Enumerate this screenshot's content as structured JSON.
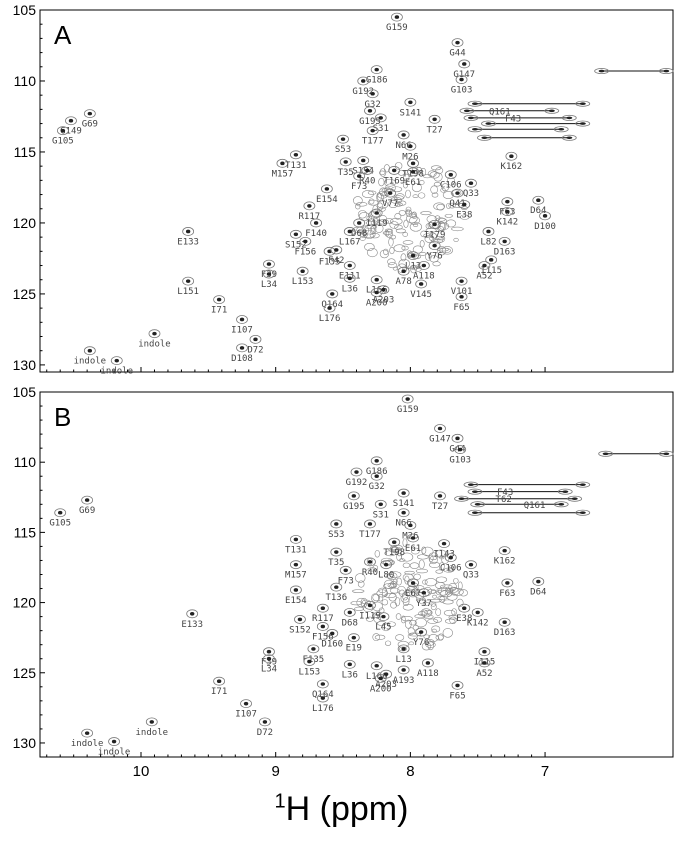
{
  "chart_data": [
    {
      "type": "scatter",
      "panel": "A",
      "xlim": [
        10.75,
        6.05
      ],
      "ylim": [
        105,
        130.5
      ],
      "x_ticks": [],
      "y_ticks": [
        105,
        110,
        115,
        120,
        125,
        130
      ],
      "peaks": [
        {
          "label": "G159",
          "x": 8.1,
          "y": 105.5
        },
        {
          "label": "G44",
          "x": 7.65,
          "y": 107.3
        },
        {
          "label": "G147",
          "x": 7.6,
          "y": 108.8
        },
        {
          "label": "G103",
          "x": 7.62,
          "y": 109.9
        },
        {
          "label": "G186",
          "x": 8.25,
          "y": 109.2
        },
        {
          "label": "G192",
          "x": 8.35,
          "y": 110.0
        },
        {
          "label": "G32",
          "x": 8.28,
          "y": 110.9
        },
        {
          "label": "S141",
          "x": 8.0,
          "y": 111.5
        },
        {
          "label": "G195",
          "x": 8.3,
          "y": 112.1
        },
        {
          "label": "S31",
          "x": 8.22,
          "y": 112.6
        },
        {
          "label": "T27",
          "x": 7.82,
          "y": 112.7
        },
        {
          "label": "T177",
          "x": 8.28,
          "y": 113.5
        },
        {
          "label": "N66",
          "x": 8.05,
          "y": 113.8
        },
        {
          "label": "S53",
          "x": 8.5,
          "y": 114.1
        },
        {
          "label": "M26",
          "x": 8.0,
          "y": 114.6
        },
        {
          "label": "T198",
          "x": 7.98,
          "y": 115.8
        },
        {
          "label": "S194",
          "x": 8.35,
          "y": 115.6
        },
        {
          "label": "T35",
          "x": 8.48,
          "y": 115.7
        },
        {
          "label": "T169",
          "x": 8.12,
          "y": 116.3
        },
        {
          "label": "R40",
          "x": 8.32,
          "y": 116.3
        },
        {
          "label": "E61",
          "x": 7.98,
          "y": 116.4
        },
        {
          "label": "C106",
          "x": 7.7,
          "y": 116.6
        },
        {
          "label": "Q33",
          "x": 7.55,
          "y": 117.2
        },
        {
          "label": "Q41",
          "x": 7.65,
          "y": 117.9
        },
        {
          "label": "K162",
          "x": 7.25,
          "y": 115.3
        },
        {
          "label": "F73",
          "x": 8.38,
          "y": 116.7
        },
        {
          "label": "V77",
          "x": 8.15,
          "y": 117.9
        },
        {
          "label": "M157",
          "x": 8.95,
          "y": 115.8
        },
        {
          "label": "T131",
          "x": 8.85,
          "y": 115.2
        },
        {
          "label": "E154",
          "x": 8.62,
          "y": 117.6
        },
        {
          "label": "E38",
          "x": 7.6,
          "y": 118.7
        },
        {
          "label": "F63",
          "x": 7.28,
          "y": 118.5
        },
        {
          "label": "D64",
          "x": 7.05,
          "y": 118.4
        },
        {
          "label": "K142",
          "x": 7.28,
          "y": 119.2
        },
        {
          "label": "D100",
          "x": 7.0,
          "y": 119.5
        },
        {
          "label": "R117",
          "x": 8.75,
          "y": 118.8
        },
        {
          "label": "I119",
          "x": 8.25,
          "y": 119.3
        },
        {
          "label": "D68",
          "x": 8.38,
          "y": 120.0
        },
        {
          "label": "F140",
          "x": 8.7,
          "y": 120.0
        },
        {
          "label": "I179",
          "x": 7.82,
          "y": 120.1
        },
        {
          "label": "L82",
          "x": 7.42,
          "y": 120.6
        },
        {
          "label": "S152",
          "x": 8.85,
          "y": 120.8
        },
        {
          "label": "F156",
          "x": 8.78,
          "y": 121.3
        },
        {
          "label": "L167",
          "x": 8.45,
          "y": 120.6
        },
        {
          "label": "D163",
          "x": 7.3,
          "y": 121.3
        },
        {
          "label": "Y76",
          "x": 7.82,
          "y": 121.6
        },
        {
          "label": "E133",
          "x": 9.65,
          "y": 120.6
        },
        {
          "label": "F135",
          "x": 8.6,
          "y": 122.0
        },
        {
          "label": "F42",
          "x": 8.55,
          "y": 121.9
        },
        {
          "label": "L13",
          "x": 7.98,
          "y": 122.3
        },
        {
          "label": "I115",
          "x": 7.4,
          "y": 122.6
        },
        {
          "label": "E111",
          "x": 8.45,
          "y": 123.0
        },
        {
          "label": "A118",
          "x": 7.9,
          "y": 123.0
        },
        {
          "label": "L153",
          "x": 8.8,
          "y": 123.4
        },
        {
          "label": "F39",
          "x": 9.05,
          "y": 122.9
        },
        {
          "label": "A78",
          "x": 8.05,
          "y": 123.4
        },
        {
          "label": "A52",
          "x": 7.45,
          "y": 123.0
        },
        {
          "label": "L34",
          "x": 9.05,
          "y": 123.6
        },
        {
          "label": "L36",
          "x": 8.45,
          "y": 123.9
        },
        {
          "label": "L166",
          "x": 8.25,
          "y": 124.0
        },
        {
          "label": "V145",
          "x": 7.92,
          "y": 124.3
        },
        {
          "label": "V101",
          "x": 7.62,
          "y": 124.1
        },
        {
          "label": "Q164",
          "x": 8.58,
          "y": 125.0
        },
        {
          "label": "F65",
          "x": 7.62,
          "y": 125.2
        },
        {
          "label": "A200",
          "x": 8.25,
          "y": 124.9
        },
        {
          "label": "A203",
          "x": 8.2,
          "y": 124.7
        },
        {
          "label": "L176",
          "x": 8.6,
          "y": 126.0
        },
        {
          "label": "L151",
          "x": 9.65,
          "y": 124.1
        },
        {
          "label": "I71",
          "x": 9.42,
          "y": 125.4
        },
        {
          "label": "I107",
          "x": 9.25,
          "y": 126.8
        },
        {
          "label": "D72",
          "x": 9.15,
          "y": 128.2
        },
        {
          "label": "D108",
          "x": 9.25,
          "y": 128.8
        },
        {
          "label": "G149",
          "x": 10.52,
          "y": 112.8
        },
        {
          "label": "G69",
          "x": 10.38,
          "y": 112.3
        },
        {
          "label": "G105",
          "x": 10.58,
          "y": 113.5
        },
        {
          "label": "indole",
          "x": 10.38,
          "y": 129.0
        },
        {
          "label": "indole",
          "x": 10.18,
          "y": 129.7
        },
        {
          "label": "indole",
          "x": 9.9,
          "y": 127.8
        }
      ],
      "connectors": [
        {
          "x1": 6.58,
          "x2": 6.1,
          "y": 109.3
        },
        {
          "x1": 7.52,
          "x2": 6.72,
          "y": 111.6
        },
        {
          "x1": 7.58,
          "x2": 6.95,
          "y": 112.1
        },
        {
          "x1": 7.55,
          "x2": 6.82,
          "y": 112.6
        },
        {
          "x1": 7.42,
          "x2": 6.72,
          "y": 113.0
        },
        {
          "x1": 7.52,
          "x2": 6.88,
          "y": 113.4
        },
        {
          "x1": 7.45,
          "x2": 6.82,
          "y": 114.0
        }
      ],
      "inline_tags": [
        "Q161",
        "F43"
      ]
    },
    {
      "type": "scatter",
      "panel": "B",
      "xlim": [
        10.75,
        6.05
      ],
      "ylim": [
        105,
        131
      ],
      "x_ticks": [
        10,
        9,
        8,
        7
      ],
      "y_ticks": [
        105,
        110,
        115,
        120,
        125,
        130
      ],
      "peaks": [
        {
          "label": "G159",
          "x": 8.02,
          "y": 105.5
        },
        {
          "label": "G147",
          "x": 7.78,
          "y": 107.6
        },
        {
          "label": "G44",
          "x": 7.65,
          "y": 108.3
        },
        {
          "label": "G103",
          "x": 7.63,
          "y": 109.1
        },
        {
          "label": "G186",
          "x": 8.25,
          "y": 109.9
        },
        {
          "label": "G192",
          "x": 8.4,
          "y": 110.7
        },
        {
          "label": "G32",
          "x": 8.25,
          "y": 111.0
        },
        {
          "label": "G195",
          "x": 8.42,
          "y": 112.4
        },
        {
          "label": "S141",
          "x": 8.05,
          "y": 112.2
        },
        {
          "label": "T27",
          "x": 7.78,
          "y": 112.4
        },
        {
          "label": "S31",
          "x": 8.22,
          "y": 113.0
        },
        {
          "label": "N66",
          "x": 8.05,
          "y": 113.6
        },
        {
          "label": "S53",
          "x": 8.55,
          "y": 114.4
        },
        {
          "label": "T177",
          "x": 8.3,
          "y": 114.4
        },
        {
          "label": "M26",
          "x": 8.0,
          "y": 114.5
        },
        {
          "label": "E61",
          "x": 7.98,
          "y": 115.4
        },
        {
          "label": "T198",
          "x": 8.12,
          "y": 115.7
        },
        {
          "label": "I143",
          "x": 7.75,
          "y": 115.8
        },
        {
          "label": "T131",
          "x": 8.85,
          "y": 115.5
        },
        {
          "label": "T35",
          "x": 8.55,
          "y": 116.4
        },
        {
          "label": "C106",
          "x": 7.7,
          "y": 116.8
        },
        {
          "label": "Q33",
          "x": 7.55,
          "y": 117.3
        },
        {
          "label": "K162",
          "x": 7.3,
          "y": 116.3
        },
        {
          "label": "M157",
          "x": 8.85,
          "y": 117.3
        },
        {
          "label": "F73",
          "x": 8.48,
          "y": 117.7
        },
        {
          "label": "R40",
          "x": 8.3,
          "y": 117.1
        },
        {
          "label": "L80",
          "x": 8.18,
          "y": 117.3
        },
        {
          "label": "E67",
          "x": 7.98,
          "y": 118.6
        },
        {
          "label": "Y37",
          "x": 7.9,
          "y": 119.3
        },
        {
          "label": "T136",
          "x": 8.55,
          "y": 118.9
        },
        {
          "label": "E154",
          "x": 8.85,
          "y": 119.1
        },
        {
          "label": "F63",
          "x": 7.28,
          "y": 118.6
        },
        {
          "label": "D64",
          "x": 7.05,
          "y": 118.5
        },
        {
          "label": "E38",
          "x": 7.6,
          "y": 120.4
        },
        {
          "label": "K142",
          "x": 7.5,
          "y": 120.7
        },
        {
          "label": "R117",
          "x": 8.65,
          "y": 120.4
        },
        {
          "label": "I119",
          "x": 8.3,
          "y": 120.2
        },
        {
          "label": "D68",
          "x": 8.45,
          "y": 120.7
        },
        {
          "label": "L45",
          "x": 8.2,
          "y": 121.0
        },
        {
          "label": "S152",
          "x": 8.82,
          "y": 121.2
        },
        {
          "label": "D163",
          "x": 7.3,
          "y": 121.4
        },
        {
          "label": "E133",
          "x": 9.62,
          "y": 120.8
        },
        {
          "label": "F156",
          "x": 8.65,
          "y": 121.7
        },
        {
          "label": "D160",
          "x": 8.58,
          "y": 122.2
        },
        {
          "label": "Y76",
          "x": 7.92,
          "y": 122.1
        },
        {
          "label": "E19",
          "x": 8.42,
          "y": 122.5
        },
        {
          "label": "L13",
          "x": 8.05,
          "y": 123.3
        },
        {
          "label": "F135",
          "x": 8.72,
          "y": 123.3
        },
        {
          "label": "F39",
          "x": 9.05,
          "y": 123.5
        },
        {
          "label": "I115",
          "x": 7.45,
          "y": 123.5
        },
        {
          "label": "A118",
          "x": 7.87,
          "y": 124.3
        },
        {
          "label": "L34",
          "x": 9.05,
          "y": 124.0
        },
        {
          "label": "L153",
          "x": 8.75,
          "y": 124.2
        },
        {
          "label": "L36",
          "x": 8.45,
          "y": 124.4
        },
        {
          "label": "L166",
          "x": 8.25,
          "y": 124.5
        },
        {
          "label": "A193",
          "x": 8.05,
          "y": 124.8
        },
        {
          "label": "A52",
          "x": 7.45,
          "y": 124.3
        },
        {
          "label": "A203",
          "x": 8.18,
          "y": 125.1
        },
        {
          "label": "A200",
          "x": 8.22,
          "y": 125.4
        },
        {
          "label": "Q164",
          "x": 8.65,
          "y": 125.8
        },
        {
          "label": "F65",
          "x": 7.65,
          "y": 125.9
        },
        {
          "label": "L176",
          "x": 8.65,
          "y": 126.8
        },
        {
          "label": "I71",
          "x": 9.42,
          "y": 125.6
        },
        {
          "label": "I107",
          "x": 9.22,
          "y": 127.2
        },
        {
          "label": "D72",
          "x": 9.08,
          "y": 128.5
        },
        {
          "label": "G69",
          "x": 10.4,
          "y": 112.7
        },
        {
          "label": "G105",
          "x": 10.6,
          "y": 113.6
        },
        {
          "label": "indole",
          "x": 10.4,
          "y": 129.3
        },
        {
          "label": "indole",
          "x": 10.2,
          "y": 129.9
        },
        {
          "label": "indole",
          "x": 9.92,
          "y": 128.5
        }
      ],
      "connectors": [
        {
          "x1": 6.55,
          "x2": 6.1,
          "y": 109.4
        },
        {
          "x1": 7.55,
          "x2": 6.72,
          "y": 111.6
        },
        {
          "x1": 7.52,
          "x2": 6.85,
          "y": 112.1
        },
        {
          "x1": 7.62,
          "x2": 6.78,
          "y": 112.6
        },
        {
          "x1": 7.5,
          "x2": 6.88,
          "y": 113.0
        },
        {
          "x1": 7.52,
          "x2": 6.72,
          "y": 113.6
        }
      ],
      "inline_tags": [
        "F43",
        "T62",
        "Q161"
      ]
    }
  ],
  "panels": {
    "a_letter": "A",
    "b_letter": "B"
  },
  "axis": {
    "xlabel_sup": "1",
    "xlabel_main": "H (ppm)"
  }
}
